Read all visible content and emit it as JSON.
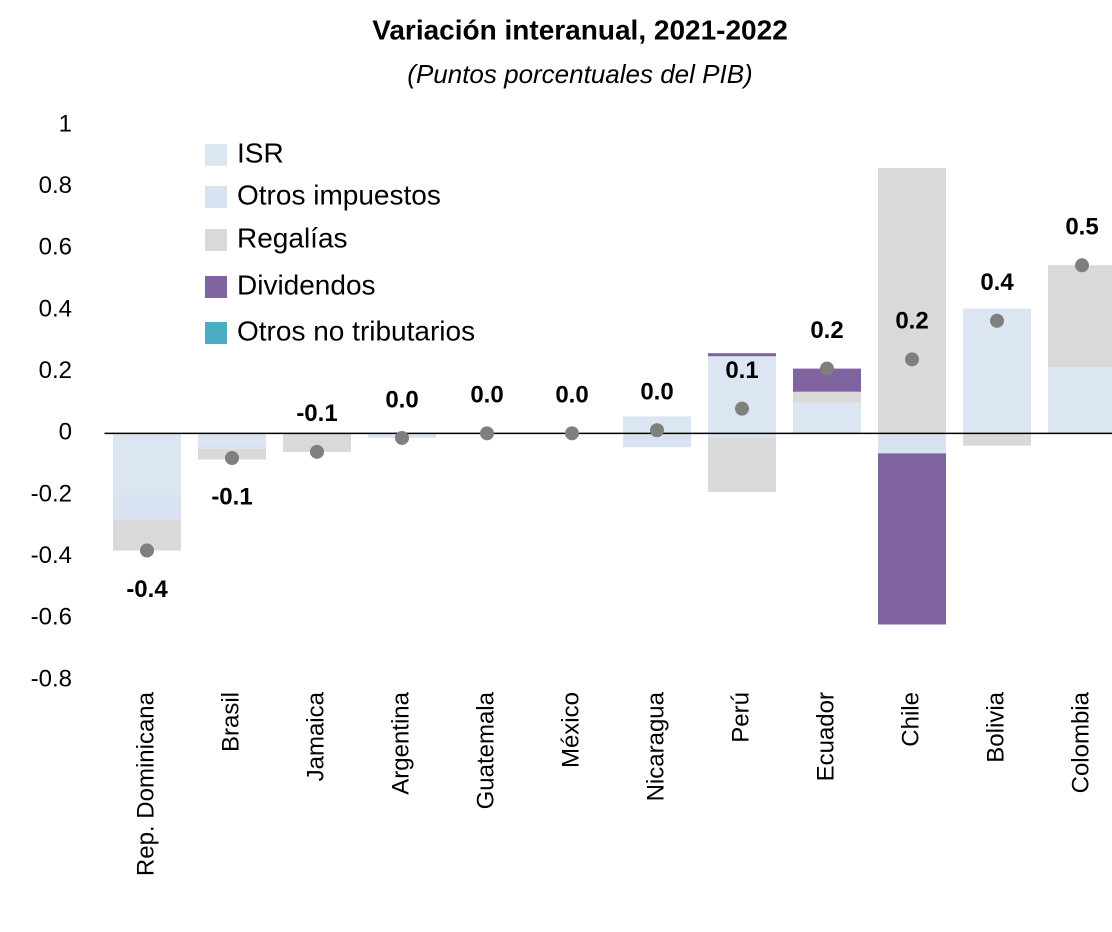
{
  "chart_data": {
    "type": "stacked_bar",
    "title": "Variación interanual, 2021-2022",
    "subtitle": "(Puntos porcentuales del PIB)",
    "categories": [
      "Rep. Dominicana",
      "Brasil",
      "Jamaica",
      "Argentina",
      "Guatemala",
      "México",
      "Nicaragua",
      "Perú",
      "Ecuador",
      "Chile",
      "Bolivia",
      "Colombia"
    ],
    "series": [
      {
        "name": "ISR",
        "color": "#dce6f2",
        "values": [
          -0.2,
          -0.03,
          0,
          -0.015,
          0,
          0,
          0.055,
          0.25,
          0.1,
          0,
          0.405,
          0.215
        ]
      },
      {
        "name": "Otros impuestos",
        "color": "#d9e2f1",
        "values": [
          -0.08,
          -0.02,
          0,
          0,
          0,
          0,
          -0.045,
          -0.015,
          0,
          -0.065,
          0,
          0
        ]
      },
      {
        "name": "Regalías",
        "color": "#d9d9d9",
        "values": [
          -0.1,
          -0.035,
          -0.06,
          0,
          0,
          0,
          0,
          -0.175,
          0.035,
          0.86,
          -0.04,
          0.33
        ]
      },
      {
        "name": "Dividendos",
        "color": "#8064a2",
        "values": [
          0,
          0,
          0,
          0,
          0,
          0,
          0,
          0.01,
          0.075,
          -0.555,
          0,
          0
        ]
      },
      {
        "name": "Otros no tributarios",
        "color": "#4bacc6",
        "values": [
          0,
          0,
          0,
          0,
          0,
          0,
          0,
          0,
          0,
          0,
          0,
          0
        ]
      }
    ],
    "totals": {
      "color": "#7f7f7f",
      "values": [
        -0.38,
        -0.08,
        -0.06,
        -0.015,
        0,
        0,
        0.01,
        0.08,
        0.21,
        0.24,
        0.365,
        0.545
      ],
      "value_labels": [
        "-0.4",
        "-0.1",
        "-0.1",
        "0.0",
        "0.0",
        "0.0",
        "0.0",
        "0.1",
        "0.2",
        "0.2",
        "0.4",
        "0.5"
      ]
    },
    "ylim": [
      -0.8,
      1
    ],
    "yticks": [
      -0.8,
      -0.6,
      -0.4,
      -0.2,
      0,
      0.2,
      0.4,
      0.6,
      0.8,
      1
    ],
    "grid": false,
    "legend": "top-left"
  }
}
